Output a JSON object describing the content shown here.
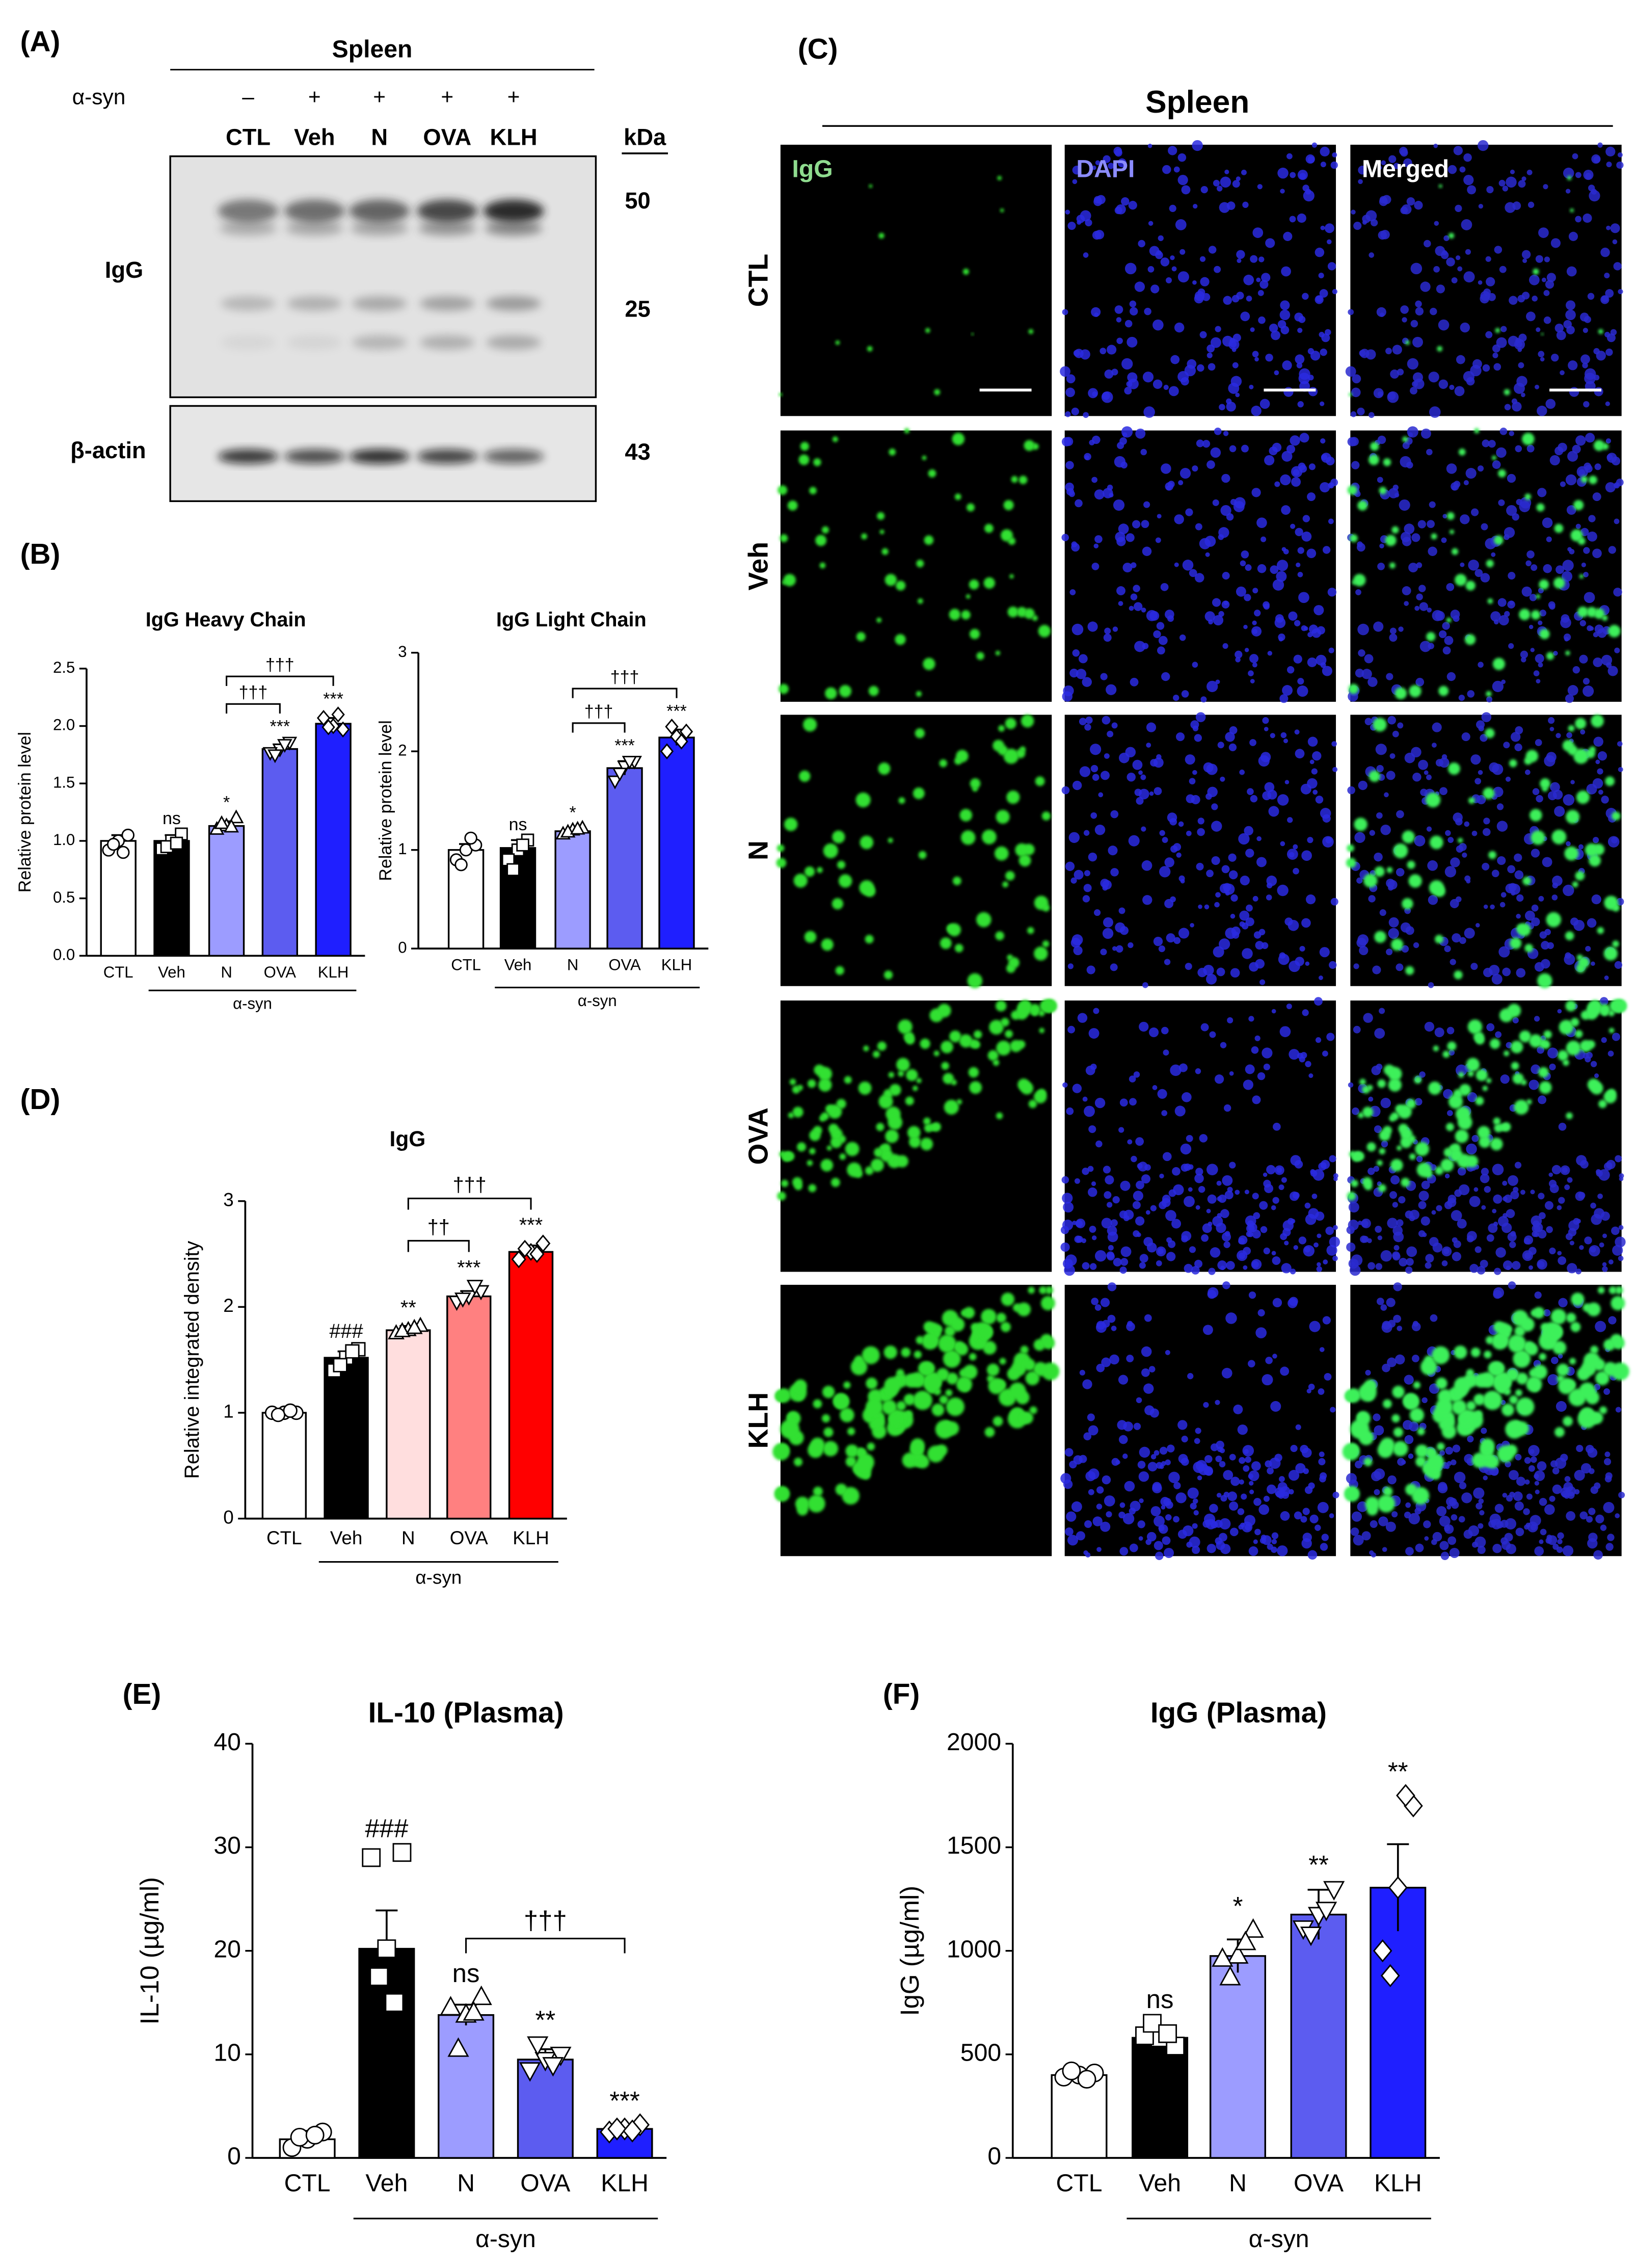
{
  "panel_labels": [
    "(A)",
    "(B)",
    "(C)",
    "(D)",
    "(E)",
    "(F)"
  ],
  "blot": {
    "title": "Spleen",
    "treatment_label": "α-syn",
    "treatment_signs": [
      "–",
      "+",
      "+",
      "+",
      "+"
    ],
    "lanes": [
      "CTL",
      "Veh",
      "N",
      "OVA",
      "KLH"
    ],
    "unit_header": "kDa",
    "rows": [
      {
        "label": "IgG",
        "markers": [
          "50",
          "25"
        ]
      },
      {
        "label": "β-actin",
        "markers": [
          "43"
        ]
      }
    ]
  },
  "microscopy": {
    "title": "Spleen",
    "columns": [
      "IgG",
      "DAPI",
      "Merged"
    ],
    "rows": [
      "CTL",
      "Veh",
      "N",
      "OVA",
      "KLH"
    ]
  },
  "chart_data": [
    {
      "type": "bar",
      "title": "IgG Heavy Chain",
      "y_label": "Relative protein level",
      "categories": [
        "CTL",
        "Veh",
        "N",
        "OVA",
        "KLH"
      ],
      "group_label": "α-syn",
      "values": [
        1.0,
        1.0,
        1.13,
        1.8,
        2.02
      ],
      "errors": [
        0.05,
        0.05,
        0.04,
        0.04,
        0.05
      ],
      "points": [
        [
          1.0,
          0.92,
          1.05,
          0.97,
          0.9
        ],
        [
          1.0,
          0.93,
          1.06,
          0.95,
          0.98
        ],
        [
          1.13,
          1.1,
          1.2,
          1.15,
          1.12
        ],
        [
          1.8,
          1.77,
          1.86,
          1.75,
          1.84
        ],
        [
          2.0,
          2.07,
          1.97,
          1.99,
          2.1
        ]
      ],
      "markers": [
        "circle",
        "square",
        "triangle-up",
        "triangle-down",
        "diamond"
      ],
      "colors": [
        "#ffffff",
        "#000000",
        "#9c9cff",
        "#5c5cf0",
        "#1f1fff"
      ],
      "sig_labels": [
        null,
        "ns",
        "*",
        "***",
        "***"
      ],
      "brackets": [
        {
          "from": "N",
          "to": "OVA",
          "label": "†††"
        },
        {
          "from": "N",
          "to": "KLH",
          "label": "†††"
        }
      ],
      "ylim": [
        0,
        2.5
      ],
      "yticks": [
        {
          "value": 0,
          "label": "0.0"
        },
        {
          "value": 0.5,
          "label": "0.5"
        },
        {
          "value": 1,
          "label": "1.0"
        },
        {
          "value": 1.5,
          "label": "1.5"
        },
        {
          "value": 2,
          "label": "2.0"
        },
        {
          "value": 2.5,
          "label": "2.5"
        }
      ]
    },
    {
      "type": "bar",
      "title": "IgG Light Chain",
      "y_label": "Relative protein level",
      "categories": [
        "CTL",
        "Veh",
        "N",
        "OVA",
        "KLH"
      ],
      "group_label": "α-syn",
      "values": [
        1.0,
        1.02,
        1.19,
        1.83,
        2.14
      ],
      "errors": [
        0.06,
        0.08,
        0.03,
        0.07,
        0.08
      ],
      "points": [
        [
          1.0,
          0.9,
          1.05,
          0.85,
          1.12
        ],
        [
          1.0,
          0.9,
          1.1,
          0.8,
          1.05
        ],
        [
          1.2,
          1.16,
          1.22,
          1.18,
          1.21
        ],
        [
          1.85,
          1.7,
          1.9,
          1.78,
          1.9
        ],
        [
          2.15,
          2.0,
          2.2,
          2.25,
          2.1
        ]
      ],
      "markers": [
        "circle",
        "square",
        "triangle-up",
        "triangle-down",
        "diamond"
      ],
      "colors": [
        "#ffffff",
        "#000000",
        "#9c9cff",
        "#5c5cf0",
        "#1f1fff"
      ],
      "sig_labels": [
        null,
        "ns",
        "*",
        "***",
        "***"
      ],
      "brackets": [
        {
          "from": "N",
          "to": "OVA",
          "label": "†††"
        },
        {
          "from": "N",
          "to": "KLH",
          "label": "†††"
        }
      ],
      "ylim": [
        0,
        3
      ],
      "yticks": [
        0,
        1,
        2,
        3
      ]
    },
    {
      "type": "bar",
      "title": "IgG",
      "y_label": "Relative integrated density",
      "categories": [
        "CTL",
        "Veh",
        "N",
        "OVA",
        "KLH"
      ],
      "group_label": "α-syn",
      "values": [
        1.0,
        1.52,
        1.78,
        2.1,
        2.52
      ],
      "errors": [
        0.02,
        0.06,
        0.04,
        0.05,
        0.06
      ],
      "points": [
        [
          1.0,
          1.0,
          1.0,
          0.98,
          1.02
        ],
        [
          1.52,
          1.4,
          1.6,
          1.45,
          1.58
        ],
        [
          1.78,
          1.75,
          1.82,
          1.77,
          1.8
        ],
        [
          2.1,
          2.05,
          2.15,
          2.08,
          2.2
        ],
        [
          2.52,
          2.45,
          2.6,
          2.55,
          2.5
        ]
      ],
      "markers": [
        "circle",
        "square",
        "triangle-up",
        "triangle-down",
        "diamond"
      ],
      "colors": [
        "#ffffff",
        "#000000",
        "#ffdede",
        "#ff8080",
        "#ff0000"
      ],
      "sig_labels": [
        null,
        "###",
        "**",
        "***",
        "***"
      ],
      "brackets": [
        {
          "from": "N",
          "to": "OVA",
          "label": "††"
        },
        {
          "from": "N",
          "to": "KLH",
          "label": "†††"
        }
      ],
      "ylim": [
        0,
        3
      ],
      "yticks": [
        0,
        1,
        2,
        3
      ]
    },
    {
      "type": "bar",
      "title": "IL-10 (Plasma)",
      "y_label": "IL-10 (µg/ml)",
      "categories": [
        "CTL",
        "Veh",
        "N",
        "OVA",
        "KLH"
      ],
      "group_label": "α-syn",
      "values": [
        1.8,
        20.2,
        13.8,
        9.5,
        2.8
      ],
      "errors": [
        0.6,
        3.7,
        1.0,
        1.0,
        0.3
      ],
      "points": [
        [
          1.8,
          1.0,
          2.5,
          2.0,
          2.2
        ],
        [
          20.2,
          29,
          29.5,
          17.5,
          15
        ],
        [
          13.8,
          14.5,
          15.5,
          10.5,
          14
        ],
        [
          9.5,
          8.5,
          10,
          11,
          9
        ],
        [
          2.8,
          2.5,
          3.2,
          2.8,
          2.6
        ]
      ],
      "markers": [
        "circle",
        "square",
        "triangle-up",
        "triangle-down",
        "diamond"
      ],
      "colors": [
        "#ffffff",
        "#000000",
        "#9c9cff",
        "#5c5cf0",
        "#1f1fff"
      ],
      "sig_labels": [
        null,
        "###",
        "ns",
        "**",
        "***"
      ],
      "brackets": [
        {
          "from": "N",
          "to": "KLH",
          "label": "†††"
        }
      ],
      "ylim": [
        0,
        40
      ],
      "yticks": [
        0,
        10,
        20,
        30,
        40
      ]
    },
    {
      "type": "bar",
      "title": "IgG (Plasma)",
      "y_label": "IgG (µg/ml)",
      "categories": [
        "CTL",
        "Veh",
        "N",
        "OVA",
        "KLH"
      ],
      "group_label": "α-syn",
      "values": [
        400,
        580,
        975,
        1175,
        1305
      ],
      "errors": [
        15,
        40,
        80,
        120,
        210
      ],
      "points": [
        [
          400,
          390,
          410,
          420,
          380
        ],
        [
          580,
          590,
          540,
          650,
          600
        ],
        [
          975,
          960,
          1100,
          870,
          1040
        ],
        [
          1175,
          1110,
          1300,
          1080,
          1200
        ],
        [
          1305,
          1000,
          1700,
          880,
          1750
        ]
      ],
      "markers": [
        "circle",
        "square",
        "triangle-up",
        "triangle-down",
        "diamond"
      ],
      "colors": [
        "#ffffff",
        "#000000",
        "#9c9cff",
        "#5c5cf0",
        "#1f1fff"
      ],
      "sig_labels": [
        null,
        "ns",
        "*",
        "**",
        "**"
      ],
      "brackets": [],
      "ylim": [
        0,
        2000
      ],
      "yticks": [
        0,
        500,
        1000,
        1500,
        2000
      ]
    }
  ]
}
